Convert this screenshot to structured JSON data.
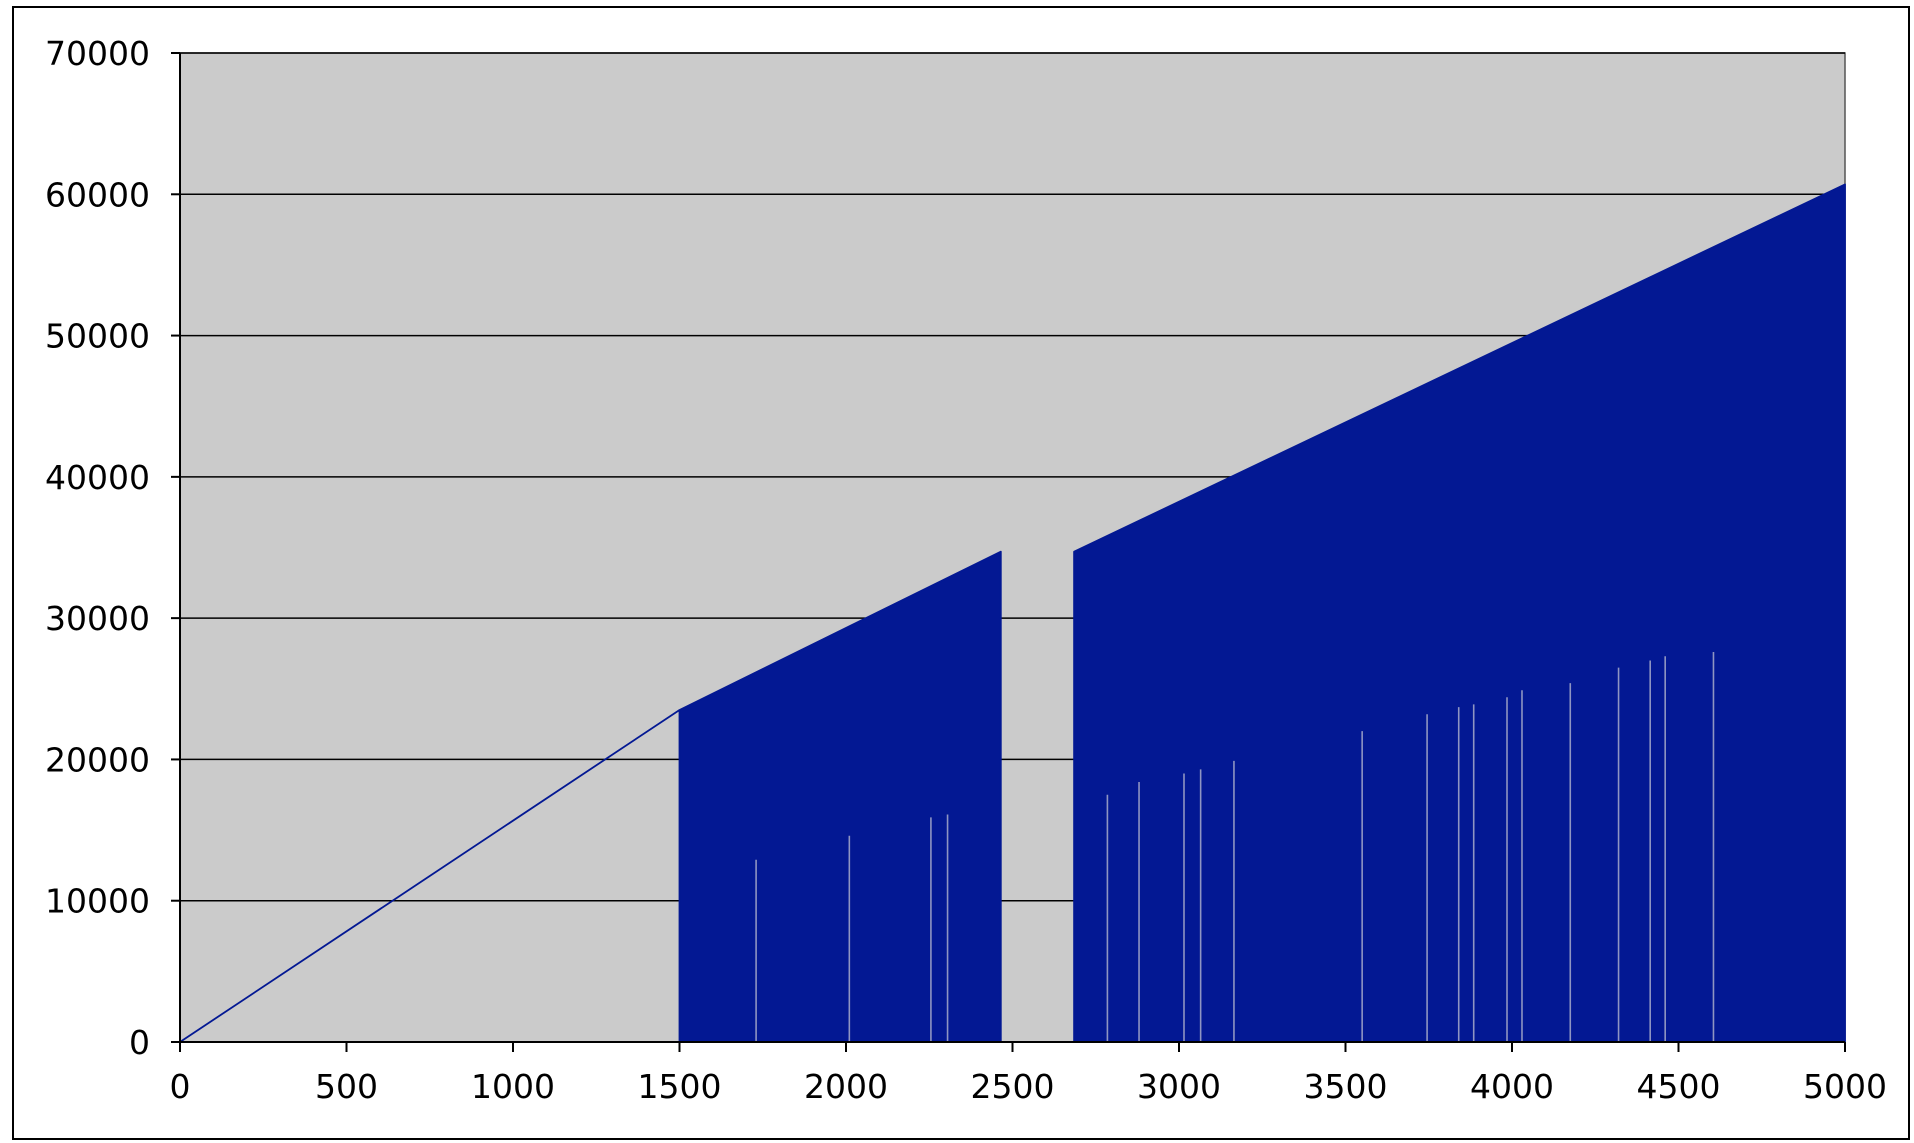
{
  "chart_data": {
    "type": "area",
    "title": "",
    "xlabel": "",
    "ylabel": "",
    "xlim": [
      0,
      5000
    ],
    "ylim": [
      0,
      70000
    ],
    "x_ticks": [
      0,
      500,
      1000,
      1500,
      2000,
      2500,
      3000,
      3500,
      4000,
      4500,
      5000
    ],
    "y_ticks": [
      0,
      10000,
      20000,
      30000,
      40000,
      50000,
      60000,
      70000
    ],
    "grid": "horizontal",
    "legend": "none",
    "series": [
      {
        "x": [
          0,
          1500,
          1500,
          2465,
          2465,
          2685,
          2685,
          5000
        ],
        "upper": [
          0,
          23500,
          23500,
          34700,
          0,
          0,
          34700,
          60700
        ],
        "lower": [
          0,
          23500,
          0,
          0,
          0,
          0,
          0,
          0
        ]
      }
    ],
    "spikes": [
      {
        "x": 1730,
        "y": 12900
      },
      {
        "x": 2010,
        "y": 14600
      },
      {
        "x": 2255,
        "y": 15900
      },
      {
        "x": 2305,
        "y": 16100
      },
      {
        "x": 2785,
        "y": 17500
      },
      {
        "x": 2880,
        "y": 18400
      },
      {
        "x": 3015,
        "y": 19000
      },
      {
        "x": 3065,
        "y": 19300
      },
      {
        "x": 3165,
        "y": 19900
      },
      {
        "x": 3550,
        "y": 22000
      },
      {
        "x": 3745,
        "y": 23200
      },
      {
        "x": 3840,
        "y": 23700
      },
      {
        "x": 3885,
        "y": 23900
      },
      {
        "x": 3985,
        "y": 24400
      },
      {
        "x": 4030,
        "y": 24900
      },
      {
        "x": 4175,
        "y": 25400
      },
      {
        "x": 4320,
        "y": 26500
      },
      {
        "x": 4415,
        "y": 27000
      },
      {
        "x": 4460,
        "y": 27300
      },
      {
        "x": 4605,
        "y": 27600
      }
    ],
    "colors": {
      "plot_background": "#cbcbcb",
      "series": "#031893",
      "gridline": "#000000",
      "spike": "#8f95c2"
    }
  }
}
